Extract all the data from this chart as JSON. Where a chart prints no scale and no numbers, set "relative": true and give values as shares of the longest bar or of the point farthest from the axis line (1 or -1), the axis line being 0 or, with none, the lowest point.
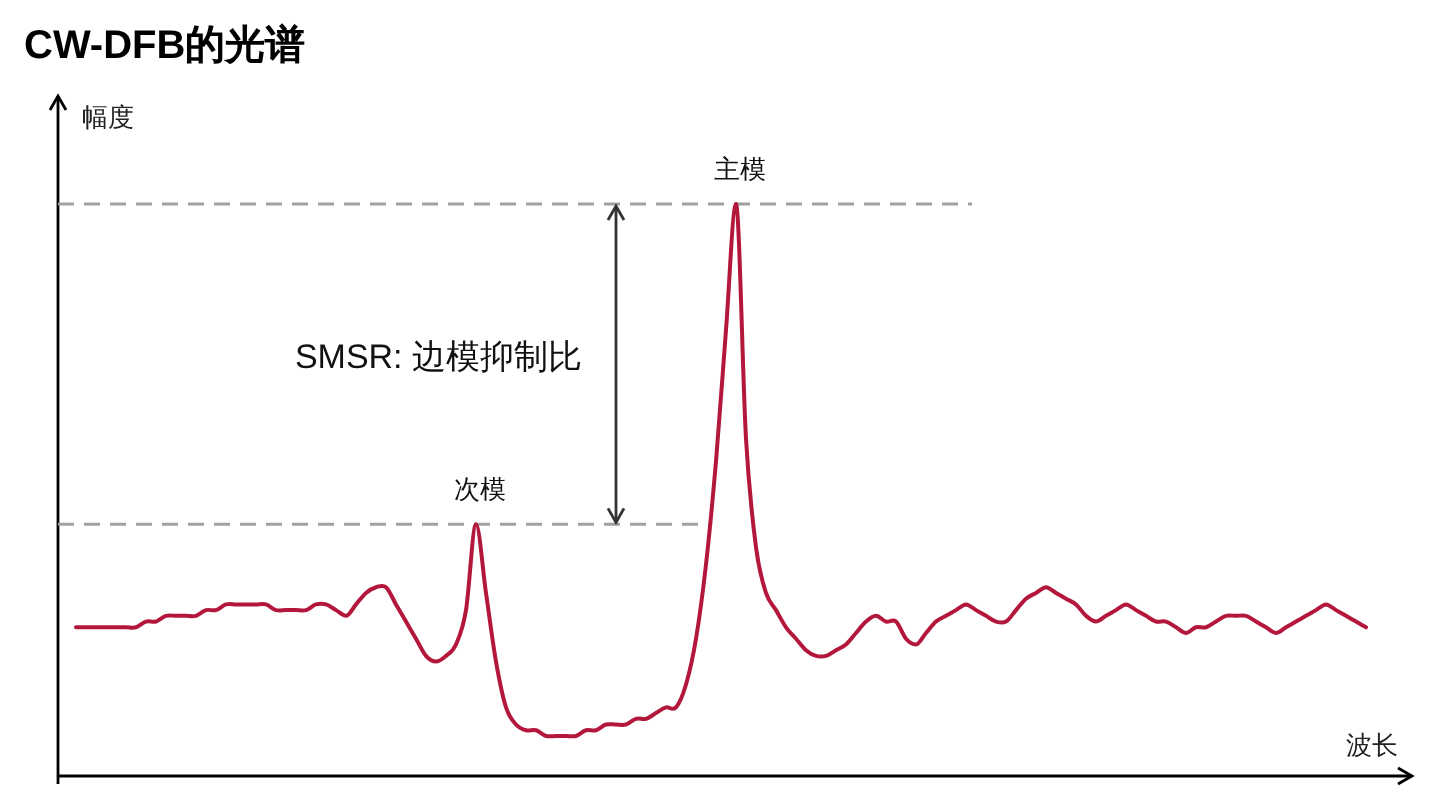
{
  "chart_data": {
    "type": "line",
    "title": "CW-DFB的光谱",
    "ylabel": "幅度",
    "xlabel": "波长",
    "relative": true,
    "categories": [
      null,
      null,
      null,
      null,
      null,
      null,
      null,
      null,
      null,
      null,
      null,
      null,
      null,
      null,
      null,
      null,
      null,
      null,
      null,
      null,
      null,
      null,
      null,
      null,
      null,
      null,
      null,
      null,
      null,
      null,
      null,
      null,
      null,
      null,
      null,
      null,
      null,
      null,
      null,
      null,
      null,
      null,
      null,
      null,
      null,
      null,
      null,
      null,
      null,
      null,
      null,
      null,
      null,
      null,
      null,
      null,
      null,
      null,
      null,
      null,
      null,
      null,
      null,
      null,
      null,
      null,
      null,
      null,
      null,
      null,
      null,
      null,
      null,
      null,
      null,
      null,
      null,
      null,
      null,
      null,
      null,
      null,
      null,
      null,
      null,
      null,
      null,
      null,
      null,
      null,
      null,
      null,
      null,
      null,
      null,
      null,
      null,
      null,
      null,
      null,
      null,
      null,
      null,
      null,
      null,
      null,
      null,
      null,
      null,
      null,
      null,
      null,
      null,
      null,
      null,
      null,
      null,
      null,
      null,
      null,
      null,
      null,
      null,
      null,
      null,
      null,
      null,
      null,
      null,
      null
    ],
    "series": [
      {
        "color": "#b4173c",
        "values": [
          0.26,
          0.26,
          0.26,
          0.26,
          0.26,
          0.26,
          0.26,
          0.27,
          0.27,
          0.28,
          0.28,
          0.28,
          0.28,
          0.29,
          0.29,
          0.3,
          0.3,
          0.3,
          0.3,
          0.3,
          0.29,
          0.29,
          0.29,
          0.29,
          0.3,
          0.3,
          0.29,
          0.28,
          0.3,
          0.32,
          0.33,
          0.33,
          0.3,
          0.27,
          0.24,
          0.21,
          0.2,
          0.21,
          0.23,
          0.29,
          0.44,
          0.32,
          0.2,
          0.12,
          0.09,
          0.08,
          0.08,
          0.07,
          0.07,
          0.07,
          0.07,
          0.08,
          0.08,
          0.09,
          0.09,
          0.09,
          0.1,
          0.1,
          0.11,
          0.12,
          0.12,
          0.16,
          0.24,
          0.37,
          0.55,
          0.78,
          1,
          0.59,
          0.4,
          0.32,
          0.29,
          0.26,
          0.24,
          0.22,
          0.21,
          0.21,
          0.22,
          0.23,
          0.25,
          0.27,
          0.28,
          0.27,
          0.27,
          0.24,
          0.23,
          0.25,
          0.27,
          0.28,
          0.29,
          0.3,
          0.29,
          0.28,
          0.27,
          0.27,
          0.29,
          0.31,
          0.32,
          0.33,
          0.32,
          0.31,
          0.3,
          0.28,
          0.27,
          0.28,
          0.29,
          0.3,
          0.29,
          0.28,
          0.27,
          0.27,
          0.26,
          0.25,
          0.26,
          0.26,
          0.27,
          0.28,
          0.28,
          0.28,
          0.27,
          0.26,
          0.25,
          0.26,
          0.27,
          0.28,
          0.29,
          0.3,
          0.29,
          0.28,
          0.27,
          0.26
        ]
      }
    ],
    "ref_lines": [
      {
        "axis": "y",
        "value": 1,
        "color": "#a0a0a0",
        "line_style": "dashed"
      },
      {
        "axis": "y",
        "value": 0.44,
        "color": "#a0a0a0",
        "line_style": "dashed"
      }
    ],
    "annotations": [
      {
        "text": "主模",
        "y": 1
      },
      {
        "text": "次模",
        "y": 0.44
      },
      "SMSR: 边模抑制比"
    ]
  }
}
